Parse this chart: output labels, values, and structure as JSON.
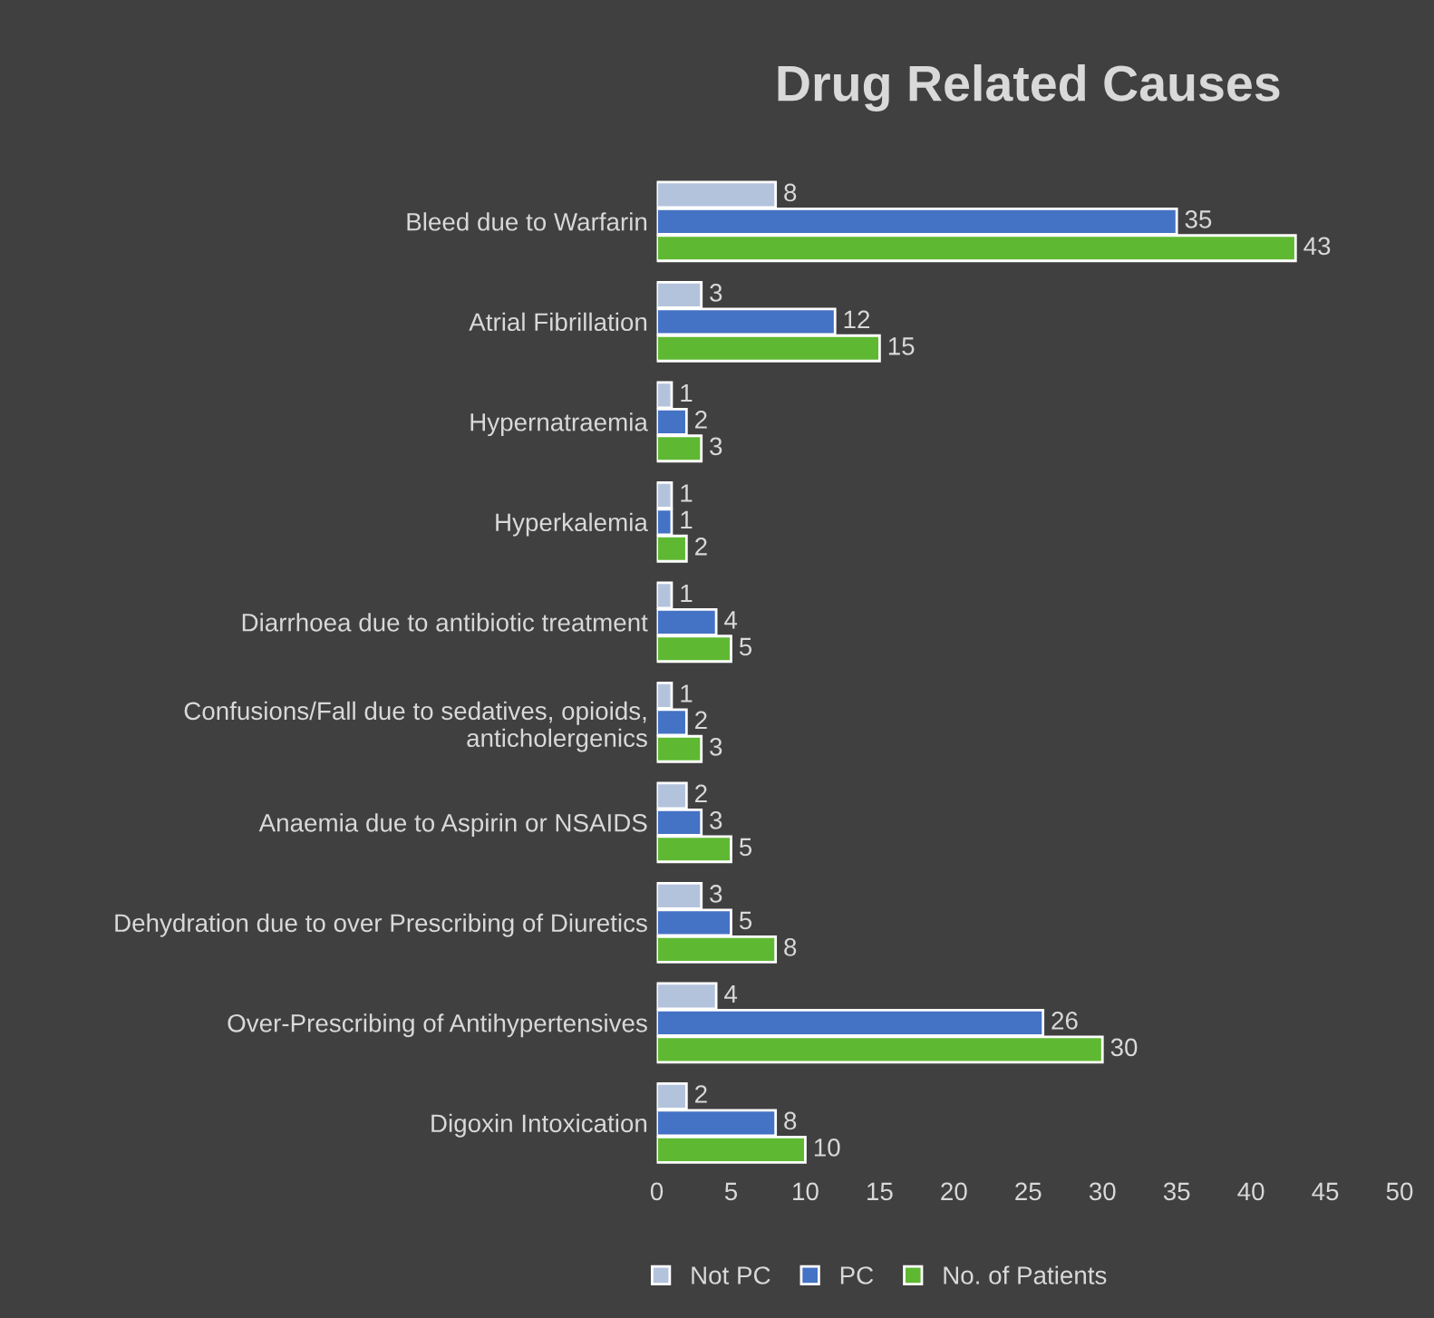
{
  "chart_data": {
    "type": "bar",
    "orientation": "horizontal",
    "title": "Drug Related Causes",
    "categories": [
      "Bleed due to Warfarin",
      "Atrial Fibrillation",
      "Hypernatraemia",
      "Hyperkalemia",
      "Diarrhoea due to antibiotic treatment",
      "Confusions/Fall due to sedatives, opioids,\nanticholergenics",
      "Anaemia due to Aspirin or NSAIDS",
      "Dehydration due to over Prescribing of Diuretics",
      "Over-Prescribing of Antihypertensives",
      "Digoxin Intoxication"
    ],
    "series": [
      {
        "name": "Not PC",
        "color": "#b4c3dc",
        "values": [
          8,
          3,
          1,
          1,
          1,
          1,
          2,
          3,
          4,
          2
        ]
      },
      {
        "name": "PC",
        "color": "#4472c4",
        "values": [
          35,
          12,
          2,
          1,
          4,
          2,
          3,
          5,
          26,
          8
        ]
      },
      {
        "name": "No. of Patients",
        "color": "#5fb832",
        "values": [
          43,
          15,
          3,
          2,
          5,
          3,
          5,
          8,
          30,
          10
        ]
      }
    ],
    "xlim": [
      0,
      50
    ],
    "xticks": [
      0,
      5,
      10,
      15,
      20,
      25,
      30,
      35,
      40,
      45,
      50
    ],
    "data_labels": true,
    "grid": false,
    "legend": "bottom"
  }
}
